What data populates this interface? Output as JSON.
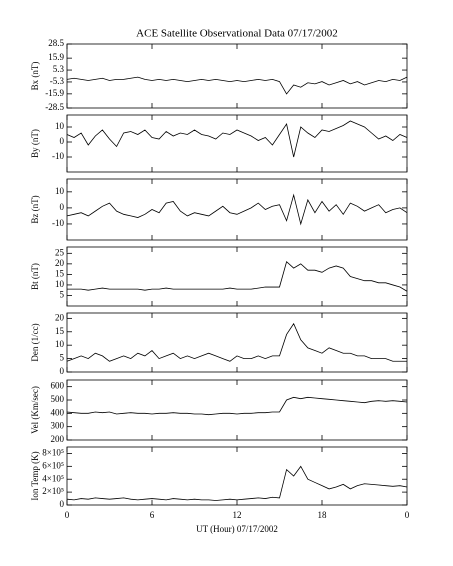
{
  "chart_data": [
    {
      "type": "line",
      "title": "ACE Satellite Observational Data   07/17/2002",
      "ylabel": "Bx (nT)",
      "xlim": [
        0,
        24
      ],
      "xticks": [
        0,
        6,
        12,
        18,
        24
      ],
      "ylim": [
        -28.5,
        28.5
      ],
      "yticks": [
        28.5,
        15.9,
        5.3,
        -5.3,
        -15.9,
        -28.5
      ],
      "x": [
        0,
        0.5,
        1,
        1.5,
        2,
        2.5,
        3,
        3.5,
        4,
        4.5,
        5,
        5.5,
        6,
        6.5,
        7,
        7.5,
        8,
        8.5,
        9,
        9.5,
        10,
        10.5,
        11,
        11.5,
        12,
        12.5,
        13,
        13.5,
        14,
        14.5,
        15,
        15.5,
        16,
        16.5,
        17,
        17.5,
        18,
        18.5,
        19,
        19.5,
        20,
        20.5,
        21,
        21.5,
        22,
        22.5,
        23,
        23.5,
        24
      ],
      "values": [
        -3,
        -2,
        -3,
        -4,
        -3,
        -2,
        -4,
        -3,
        -3,
        -2,
        -1,
        -3,
        -4,
        -3,
        -4,
        -3,
        -4,
        -5,
        -4,
        -3,
        -4,
        -3,
        -4,
        -5,
        -4,
        -5,
        -4,
        -3,
        -4,
        -3,
        -5,
        -16,
        -8,
        -10,
        -6,
        -7,
        -5,
        -8,
        -6,
        -4,
        -7,
        -5,
        -8,
        -6,
        -4,
        -5,
        -3,
        -4,
        -1
      ]
    },
    {
      "type": "line",
      "ylabel": "By (nT)",
      "xlim": [
        0,
        24
      ],
      "xticks": [
        0,
        6,
        12,
        18,
        24
      ],
      "ylim": [
        -20,
        18
      ],
      "yticks": [
        -10,
        0,
        10
      ],
      "x": [
        0,
        0.5,
        1,
        1.5,
        2,
        2.5,
        3,
        3.5,
        4,
        4.5,
        5,
        5.5,
        6,
        6.5,
        7,
        7.5,
        8,
        8.5,
        9,
        9.5,
        10,
        10.5,
        11,
        11.5,
        12,
        12.5,
        13,
        13.5,
        14,
        14.5,
        15,
        15.5,
        16,
        16.5,
        17,
        17.5,
        18,
        18.5,
        19,
        19.5,
        20,
        20.5,
        21,
        21.5,
        22,
        22.5,
        23,
        23.5,
        24
      ],
      "values": [
        5,
        3,
        6,
        -2,
        4,
        8,
        2,
        -3,
        6,
        7,
        5,
        8,
        3,
        2,
        7,
        4,
        6,
        5,
        8,
        5,
        4,
        2,
        6,
        5,
        8,
        6,
        4,
        1,
        3,
        -2,
        5,
        12,
        -10,
        10,
        6,
        3,
        8,
        7,
        9,
        11,
        14,
        12,
        10,
        6,
        2,
        4,
        1,
        5,
        3
      ]
    },
    {
      "type": "line",
      "ylabel": "Bz (nT)",
      "xlim": [
        0,
        24
      ],
      "xticks": [
        0,
        6,
        12,
        18,
        24
      ],
      "ylim": [
        -20,
        18
      ],
      "yticks": [
        -10,
        0,
        10
      ],
      "x": [
        0,
        0.5,
        1,
        1.5,
        2,
        2.5,
        3,
        3.5,
        4,
        4.5,
        5,
        5.5,
        6,
        6.5,
        7,
        7.5,
        8,
        8.5,
        9,
        9.5,
        10,
        10.5,
        11,
        11.5,
        12,
        12.5,
        13,
        13.5,
        14,
        14.5,
        15,
        15.5,
        16,
        16.5,
        17,
        17.5,
        18,
        18.5,
        19,
        19.5,
        20,
        20.5,
        21,
        21.5,
        22,
        22.5,
        23,
        23.5,
        24
      ],
      "values": [
        -5,
        -4,
        -3,
        -5,
        -2,
        1,
        3,
        -2,
        -4,
        -5,
        -6,
        -4,
        -1,
        -3,
        3,
        4,
        -2,
        -5,
        -3,
        -4,
        -5,
        -2,
        1,
        -3,
        -4,
        -2,
        0,
        3,
        -1,
        1,
        2,
        -8,
        8,
        -10,
        5,
        -3,
        4,
        -2,
        2,
        -4,
        3,
        1,
        -2,
        0,
        2,
        -3,
        -1,
        0,
        -3
      ]
    },
    {
      "type": "line",
      "ylabel": "Bt (nT)",
      "xlim": [
        0,
        24
      ],
      "xticks": [
        0,
        6,
        12,
        18,
        24
      ],
      "ylim": [
        0,
        28
      ],
      "yticks": [
        5,
        10,
        15,
        20,
        25
      ],
      "x": [
        0,
        0.5,
        1,
        1.5,
        2,
        2.5,
        3,
        3.5,
        4,
        4.5,
        5,
        5.5,
        6,
        6.5,
        7,
        7.5,
        8,
        8.5,
        9,
        9.5,
        10,
        10.5,
        11,
        11.5,
        12,
        12.5,
        13,
        13.5,
        14,
        14.5,
        15,
        15.5,
        16,
        16.5,
        17,
        17.5,
        18,
        18.5,
        19,
        19.5,
        20,
        20.5,
        21,
        21.5,
        22,
        22.5,
        23,
        23.5,
        24
      ],
      "values": [
        8,
        8,
        8,
        7.5,
        8,
        8.5,
        8,
        8,
        8,
        8,
        8,
        7.5,
        8,
        8,
        8.5,
        8,
        8,
        8,
        8,
        8,
        8,
        8,
        8,
        8.5,
        8,
        8,
        8,
        8.5,
        9,
        9,
        9,
        21,
        18,
        20,
        17,
        17,
        16,
        18,
        19,
        18,
        14,
        13,
        12,
        12,
        11,
        11,
        10,
        9,
        7
      ]
    },
    {
      "type": "line",
      "ylabel": "Den (1/cc)",
      "xlim": [
        0,
        24
      ],
      "xticks": [
        0,
        6,
        12,
        18,
        24
      ],
      "ylim": [
        0,
        22
      ],
      "yticks": [
        0,
        5,
        10,
        15,
        20
      ],
      "x": [
        0,
        0.5,
        1,
        1.5,
        2,
        2.5,
        3,
        3.5,
        4,
        4.5,
        5,
        5.5,
        6,
        6.5,
        7,
        7.5,
        8,
        8.5,
        9,
        9.5,
        10,
        10.5,
        11,
        11.5,
        12,
        12.5,
        13,
        13.5,
        14,
        14.5,
        15,
        15.5,
        16,
        16.5,
        17,
        17.5,
        18,
        18.5,
        19,
        19.5,
        20,
        20.5,
        21,
        21.5,
        22,
        22.5,
        23,
        23.5,
        24
      ],
      "values": [
        4,
        5,
        6,
        5,
        7,
        6,
        4,
        5,
        6,
        5,
        7,
        6,
        8,
        5,
        6,
        7,
        5,
        6,
        5,
        6,
        7,
        6,
        5,
        4,
        6,
        5,
        5,
        6,
        5,
        6,
        6,
        14,
        18,
        12,
        9,
        8,
        7,
        9,
        8,
        7,
        7,
        6,
        6,
        5,
        5,
        5,
        4,
        4,
        4
      ]
    },
    {
      "type": "line",
      "ylabel": "Vel (Km/sec)",
      "xlim": [
        0,
        24
      ],
      "xticks": [
        0,
        6,
        12,
        18,
        24
      ],
      "ylim": [
        200,
        650
      ],
      "yticks": [
        200,
        300,
        400,
        500,
        600
      ],
      "x": [
        0,
        0.5,
        1,
        1.5,
        2,
        2.5,
        3,
        3.5,
        4,
        4.5,
        5,
        5.5,
        6,
        6.5,
        7,
        7.5,
        8,
        8.5,
        9,
        9.5,
        10,
        10.5,
        11,
        11.5,
        12,
        12.5,
        13,
        13.5,
        14,
        14.5,
        15,
        15.5,
        16,
        16.5,
        17,
        17.5,
        18,
        18.5,
        19,
        19.5,
        20,
        20.5,
        21,
        21.5,
        22,
        22.5,
        23,
        23.5,
        24
      ],
      "values": [
        410,
        405,
        400,
        400,
        410,
        405,
        410,
        395,
        400,
        405,
        400,
        400,
        395,
        400,
        400,
        405,
        400,
        400,
        395,
        395,
        390,
        395,
        400,
        400,
        395,
        400,
        400,
        405,
        405,
        410,
        410,
        500,
        520,
        510,
        520,
        515,
        510,
        505,
        500,
        495,
        490,
        485,
        480,
        490,
        495,
        490,
        495,
        490,
        485
      ]
    },
    {
      "type": "line",
      "ylabel": "Ion Temp (K)",
      "xlabel": "UT (Hour)  07/17/2002",
      "xlim": [
        0,
        24
      ],
      "xticks": [
        0,
        6,
        12,
        18,
        {
          "value": 24,
          "label": "0"
        }
      ],
      "ylim": [
        0,
        900000
      ],
      "yticks": [
        0,
        {
          "value": 200000,
          "label": "2×10⁵"
        },
        {
          "value": 400000,
          "label": "4×10⁵"
        },
        {
          "value": 600000,
          "label": "6×10⁵"
        },
        {
          "value": 800000,
          "label": "8×10⁵"
        }
      ],
      "x": [
        0,
        0.5,
        1,
        1.5,
        2,
        2.5,
        3,
        3.5,
        4,
        4.5,
        5,
        5.5,
        6,
        6.5,
        7,
        7.5,
        8,
        8.5,
        9,
        9.5,
        10,
        10.5,
        11,
        11.5,
        12,
        12.5,
        13,
        13.5,
        14,
        14.5,
        15,
        15.5,
        16,
        16.5,
        17,
        17.5,
        18,
        18.5,
        19,
        19.5,
        20,
        20.5,
        21,
        21.5,
        22,
        22.5,
        23,
        23.5,
        24
      ],
      "values": [
        90000,
        80000,
        100000,
        90000,
        110000,
        100000,
        90000,
        100000,
        110000,
        90000,
        80000,
        90000,
        100000,
        90000,
        80000,
        100000,
        90000,
        80000,
        90000,
        80000,
        80000,
        70000,
        80000,
        90000,
        80000,
        90000,
        100000,
        110000,
        100000,
        120000,
        110000,
        550000,
        450000,
        600000,
        400000,
        350000,
        300000,
        250000,
        280000,
        320000,
        250000,
        300000,
        330000,
        320000,
        310000,
        300000,
        290000,
        300000,
        280000
      ]
    }
  ]
}
